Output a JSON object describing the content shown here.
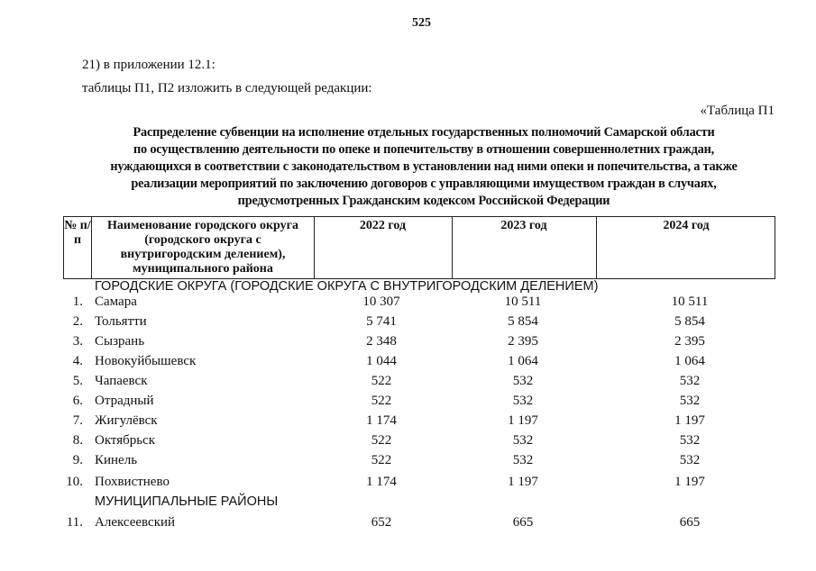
{
  "page_number": "525",
  "intro": {
    "line1": "21) в приложении 12.1:",
    "line2": "таблицы П1, П2 изложить в следующей редакции:"
  },
  "table_label": "«Таблица П1",
  "title_lines": [
    "Распределение субвенции на исполнение отдельных государственных полномочий Самарской области",
    "по осуществлению деятельности по опеке и попечительству в отношении совершеннолетних граждан,",
    "нуждающихся в соответствии с законодательством в установлении над ними опеки и попечительства, а также",
    "реализации мероприятий по заключению договоров с управляющими имуществом граждан в случаях,",
    "предусмотренных Гражданским кодексом Российской Федерации"
  ],
  "table": {
    "headers": {
      "num": "№ п/п",
      "name": "Наименование городского округа (городского округа с внутригородским делением), муниципального района",
      "y2022": "2022 год",
      "y2023": "2023 год",
      "y2024": "2024 год"
    },
    "section1": "ГОРОДСКИЕ ОКРУГА (ГОРОДСКИЕ ОКРУГА С ВНУТРИГОРОДСКИМ ДЕЛЕНИЕМ)",
    "rows1": [
      {
        "num": "1.",
        "name": "Самара",
        "v2022": "10 307",
        "v2023": "10 511",
        "v2024": "10 511"
      },
      {
        "num": "2.",
        "name": "Тольятти",
        "v2022": "5 741",
        "v2023": "5 854",
        "v2024": "5 854"
      },
      {
        "num": "3.",
        "name": "Сызрань",
        "v2022": "2 348",
        "v2023": "2 395",
        "v2024": "2 395"
      },
      {
        "num": "4.",
        "name": "Новокуйбышевск",
        "v2022": "1 044",
        "v2023": "1 064",
        "v2024": "1 064"
      },
      {
        "num": "5.",
        "name": "Чапаевск",
        "v2022": "522",
        "v2023": "532",
        "v2024": "532"
      },
      {
        "num": "6.",
        "name": "Отрадный",
        "v2022": "522",
        "v2023": "532",
        "v2024": "532"
      },
      {
        "num": "7.",
        "name": "Жигулёвск",
        "v2022": "1 174",
        "v2023": "1 197",
        "v2024": "1 197"
      },
      {
        "num": "8.",
        "name": "Октябрьск",
        "v2022": "522",
        "v2023": "532",
        "v2024": "532"
      },
      {
        "num": "9.",
        "name": "Кинель",
        "v2022": "522",
        "v2023": "532",
        "v2024": "532"
      },
      {
        "num": "10.",
        "name": "Похвистнево",
        "v2022": "1 174",
        "v2023": "1 197",
        "v2024": "1 197"
      }
    ],
    "section2": "МУНИЦИПАЛЬНЫЕ РАЙОНЫ",
    "rows2": [
      {
        "num": "11.",
        "name": "Алексеевский",
        "v2022": "652",
        "v2023": "665",
        "v2024": "665"
      }
    ]
  }
}
